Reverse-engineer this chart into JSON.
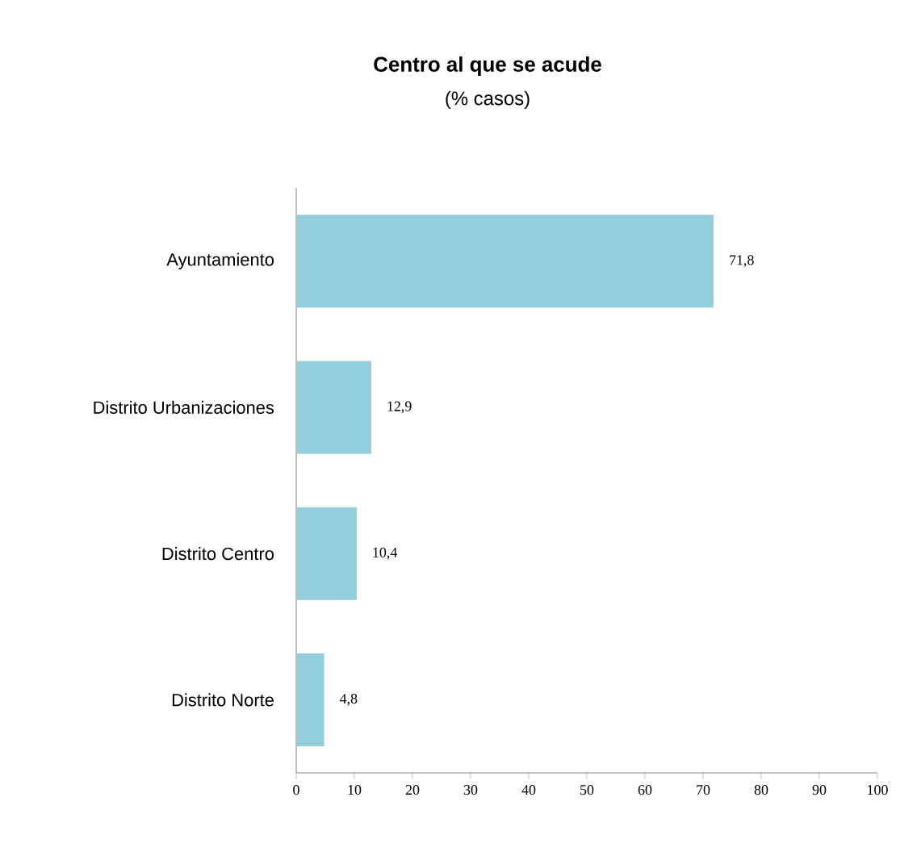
{
  "chart_data": {
    "type": "bar",
    "orientation": "horizontal",
    "title": "Centro al que se acude",
    "subtitle": "(% casos)",
    "categories": [
      "Ayuntamiento",
      "Distrito Urbanizaciones",
      "Distrito Centro",
      "Distrito Norte"
    ],
    "values": [
      71.8,
      12.9,
      10.4,
      4.8
    ],
    "value_labels": [
      "71,8",
      "12,9",
      "10,4",
      "4,8"
    ],
    "color": "#92cddc",
    "xlim": [
      0,
      100
    ],
    "xticks": [
      0,
      10,
      20,
      30,
      40,
      50,
      60,
      70,
      80,
      90,
      100
    ],
    "grid": false
  }
}
